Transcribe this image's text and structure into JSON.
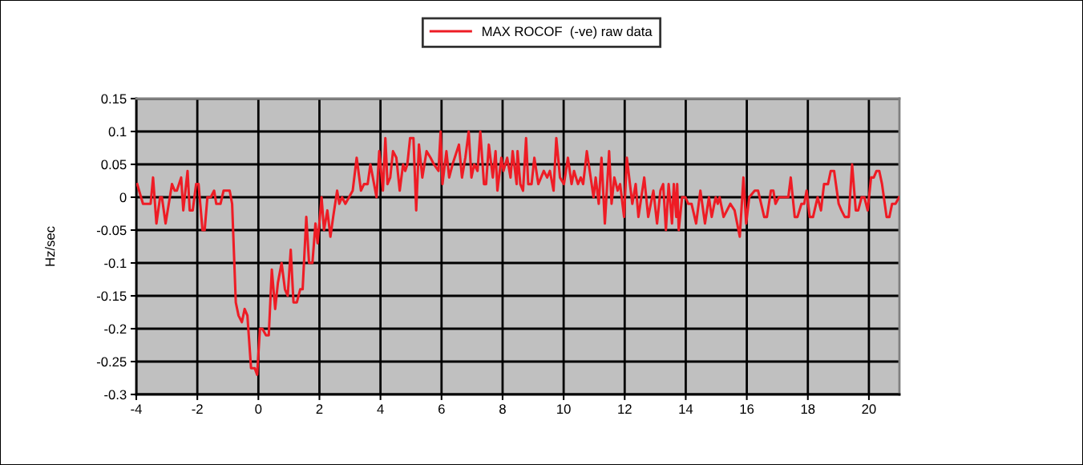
{
  "chart_data": {
    "type": "line",
    "ylabel": "Hz/sec",
    "xlim": [
      -4,
      21
    ],
    "xticks": [
      -4,
      -2,
      0,
      2,
      4,
      6,
      8,
      10,
      12,
      14,
      16,
      18,
      20
    ],
    "ylim": [
      -0.3,
      0.15
    ],
    "yticks": [
      -0.3,
      -0.25,
      -0.2,
      -0.15,
      -0.1,
      -0.05,
      0,
      0.05,
      0.1,
      0.15
    ],
    "grid": true,
    "legend": "top",
    "marker": "none",
    "line_style": "solid",
    "series": [
      {
        "name": "MAX ROCOF  (-ve) raw data",
        "color": "#ee1c25",
        "x": [
          -3.97,
          -3.78,
          -3.53,
          -3.45,
          -3.34,
          -3.22,
          -3.16,
          -3.04,
          -2.83,
          -2.74,
          -2.67,
          -2.53,
          -2.46,
          -2.32,
          -2.25,
          -2.15,
          -2.04,
          -1.96,
          -1.83,
          -1.76,
          -1.67,
          -1.56,
          -1.45,
          -1.38,
          -1.24,
          -1.14,
          -0.94,
          -0.86,
          -0.74,
          -0.65,
          -0.54,
          -0.45,
          -0.36,
          -0.24,
          -0.12,
          -0.04,
          0.05,
          0.13,
          0.25,
          0.34,
          0.44,
          0.55,
          0.64,
          0.76,
          0.87,
          0.96,
          1.06,
          1.15,
          1.26,
          1.37,
          1.45,
          1.57,
          1.66,
          1.77,
          1.87,
          1.94,
          2.07,
          2.15,
          2.26,
          2.36,
          2.45,
          2.58,
          2.65,
          2.74,
          2.85,
          2.97,
          3.09,
          3.22,
          3.36,
          3.46,
          3.58,
          3.67,
          3.87,
          3.96,
          4.08,
          4.16,
          4.23,
          4.32,
          4.41,
          4.52,
          4.63,
          4.74,
          4.81,
          4.88,
          4.97,
          5.08,
          5.17,
          5.26,
          5.37,
          5.51,
          5.64,
          5.75,
          5.9,
          5.97,
          6.03,
          6.16,
          6.25,
          6.36,
          6.57,
          6.67,
          6.78,
          6.89,
          6.98,
          7.07,
          7.18,
          7.27,
          7.39,
          7.46,
          7.55,
          7.68,
          7.77,
          7.83,
          7.96,
          8.03,
          8.15,
          8.26,
          8.33,
          8.46,
          8.49,
          8.58,
          8.67,
          8.77,
          8.84,
          8.95,
          9.04,
          9.17,
          9.35,
          9.46,
          9.55,
          9.67,
          9.76,
          9.88,
          10.01,
          10.14,
          10.26,
          10.34,
          10.47,
          10.56,
          10.64,
          10.76,
          10.98,
          11.05,
          11.15,
          11.24,
          11.35,
          11.49,
          11.57,
          11.66,
          11.77,
          11.85,
          11.98,
          12.07,
          12.25,
          12.36,
          12.45,
          12.64,
          12.77,
          12.94,
          13.06,
          13.17,
          13.26,
          13.35,
          13.44,
          13.55,
          13.61,
          13.69,
          13.72,
          13.77,
          13.88,
          13.99,
          14.08,
          14.19,
          14.34,
          14.48,
          14.63,
          14.76,
          14.85,
          14.98,
          15.05,
          15.11,
          15.24,
          15.46,
          15.6,
          15.77,
          15.89,
          15.98,
          16.08,
          16.26,
          16.37,
          16.57,
          16.66,
          16.79,
          16.87,
          16.94,
          17.05,
          17.36,
          17.44,
          17.57,
          17.66,
          17.79,
          17.88,
          17.96,
          18.06,
          18.17,
          18.32,
          18.43,
          18.53,
          18.66,
          18.75,
          18.86,
          19.01,
          19.1,
          19.21,
          19.34,
          19.45,
          19.57,
          19.65,
          19.76,
          19.85,
          19.96,
          20.07,
          20.16,
          20.25,
          20.34,
          20.43,
          20.58,
          20.67,
          20.76,
          20.87,
          20.99
        ],
        "values": [
          0.02,
          -0.01,
          -0.01,
          0.03,
          -0.04,
          0,
          0,
          -0.04,
          0.02,
          0.01,
          0.01,
          0.03,
          -0.02,
          0.04,
          -0.02,
          -0.02,
          0.02,
          0.02,
          -0.05,
          -0.05,
          0,
          0,
          0.01,
          -0.01,
          -0.01,
          0.01,
          0.01,
          -0.01,
          -0.16,
          -0.18,
          -0.19,
          -0.17,
          -0.18,
          -0.26,
          -0.26,
          -0.27,
          -0.2,
          -0.2,
          -0.21,
          -0.21,
          -0.11,
          -0.17,
          -0.13,
          -0.1,
          -0.14,
          -0.15,
          -0.08,
          -0.16,
          -0.16,
          -0.14,
          -0.14,
          -0.03,
          -0.1,
          -0.1,
          -0.04,
          -0.07,
          0,
          -0.05,
          -0.02,
          -0.06,
          -0.03,
          0.01,
          -0.01,
          0,
          -0.01,
          0,
          0.01,
          0.06,
          0.01,
          0.02,
          0.02,
          0.05,
          0,
          0.07,
          0.01,
          0.09,
          0.02,
          0.03,
          0.07,
          0.06,
          0.01,
          0.05,
          0.04,
          0.05,
          0.09,
          0.09,
          -0.02,
          0.08,
          0.03,
          0.07,
          0.06,
          0.05,
          0.04,
          0.1,
          0.02,
          0.07,
          0.03,
          0.05,
          0.08,
          0.03,
          0.06,
          0.1,
          0.03,
          0.05,
          0.04,
          0.1,
          0.02,
          0.02,
          0.08,
          0.03,
          0.07,
          0.01,
          0.06,
          0.04,
          0.06,
          0.03,
          0.07,
          0.02,
          0.07,
          0.02,
          0.01,
          0.09,
          0.02,
          0.02,
          0.06,
          0.02,
          0.04,
          0.03,
          0.04,
          0.01,
          0.09,
          0.03,
          0.02,
          0.06,
          0.02,
          0.04,
          0.02,
          0.03,
          0.02,
          0.07,
          0,
          0.03,
          -0.01,
          0.06,
          -0.04,
          0.07,
          -0.01,
          0.03,
          0.01,
          0.02,
          -0.03,
          0.06,
          -0.01,
          0.02,
          -0.03,
          0.03,
          -0.03,
          0.01,
          -0.04,
          0.01,
          0.02,
          -0.05,
          0.02,
          -0.04,
          0.02,
          -0.03,
          0.02,
          -0.05,
          0,
          0,
          -0.01,
          -0.01,
          -0.04,
          0.01,
          -0.04,
          0,
          -0.03,
          0,
          -0.01,
          0,
          -0.03,
          -0.01,
          -0.02,
          -0.06,
          0.03,
          -0.04,
          0,
          0.01,
          0.01,
          -0.03,
          -0.03,
          0.01,
          0.01,
          -0.01,
          0,
          0,
          0.03,
          -0.03,
          -0.03,
          -0.01,
          -0.01,
          0.01,
          -0.03,
          -0.03,
          0,
          -0.02,
          0.02,
          0.02,
          0.04,
          0.04,
          -0.01,
          -0.02,
          -0.03,
          -0.03,
          0.05,
          -0.02,
          -0.02,
          0,
          0,
          -0.02,
          0.03,
          0.03,
          0.04,
          0.04,
          0.02,
          -0.03,
          -0.03,
          -0.01,
          -0.01,
          0
        ]
      }
    ]
  }
}
